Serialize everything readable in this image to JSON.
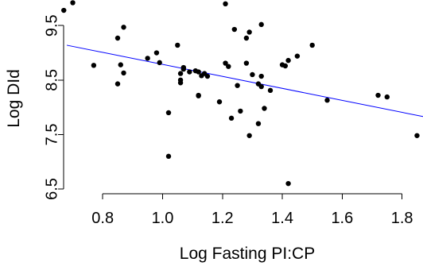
{
  "chart_data": {
    "type": "scatter",
    "title": "",
    "xlabel": "Log Fasting PI:CP",
    "ylabel": "Log DId",
    "xlim": [
      0.68,
      1.87
    ],
    "ylim": [
      6.5,
      9.97
    ],
    "x_ticks": [
      0.8,
      1.0,
      1.2,
      1.4,
      1.6,
      1.8
    ],
    "x_tick_labels": [
      "0.8",
      "1.0",
      "1.2",
      "1.4",
      "1.6",
      "1.8"
    ],
    "y_ticks": [
      6.5,
      7.5,
      8.5,
      9.5
    ],
    "y_tick_labels": [
      "6.5",
      "7.5",
      "8.5",
      "9.5"
    ],
    "colors": {
      "points": "#000000",
      "fit_line": "#0000ff",
      "axes": "#000000",
      "background": "#ffffff"
    },
    "grid": false,
    "legend": "none",
    "series": [
      {
        "type": "scatter",
        "x": [
          0.67,
          0.7,
          0.77,
          0.85,
          0.85,
          0.86,
          0.87,
          0.87,
          0.95,
          0.98,
          0.99,
          1.02,
          1.02,
          1.05,
          1.06,
          1.06,
          1.06,
          1.07,
          1.07,
          1.09,
          1.11,
          1.12,
          1.12,
          1.12,
          1.13,
          1.14,
          1.15,
          1.19,
          1.21,
          1.21,
          1.22,
          1.23,
          1.24,
          1.25,
          1.26,
          1.28,
          1.28,
          1.29,
          1.29,
          1.3,
          1.32,
          1.32,
          1.33,
          1.33,
          1.33,
          1.34,
          1.36,
          1.4,
          1.41,
          1.42,
          1.42,
          1.45,
          1.5,
          1.55,
          1.72,
          1.75,
          1.85
        ],
        "y": [
          9.78,
          9.92,
          8.77,
          9.27,
          8.43,
          8.78,
          9.47,
          8.63,
          8.9,
          9.0,
          8.82,
          7.9,
          7.1,
          9.14,
          8.62,
          8.5,
          8.45,
          8.73,
          8.7,
          8.65,
          8.67,
          8.21,
          8.65,
          8.22,
          8.58,
          8.62,
          8.57,
          8.1,
          9.9,
          8.81,
          8.75,
          7.8,
          9.43,
          8.4,
          7.93,
          8.81,
          9.27,
          9.38,
          7.48,
          8.6,
          7.7,
          8.43,
          9.52,
          8.38,
          8.57,
          7.98,
          8.31,
          8.78,
          8.76,
          6.6,
          8.86,
          8.94,
          9.14,
          8.13,
          8.22,
          8.19,
          7.48
        ]
      },
      {
        "type": "line",
        "x": [
          0.68,
          1.87
        ],
        "y": [
          9.14,
          7.83
        ]
      }
    ]
  }
}
